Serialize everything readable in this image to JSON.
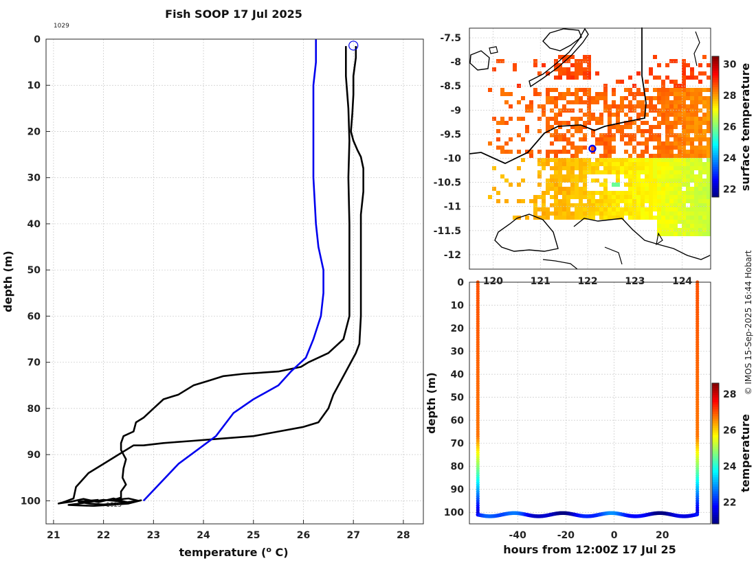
{
  "chart_data": [
    {
      "type": "line",
      "title": "Fish SOOP 17 Jul 2025",
      "xlabel": "temperature (",
      "xlabel_sup": "o",
      "xlabel_end": " C)",
      "ylabel": "depth (m)",
      "xlim": [
        20.85,
        28.4
      ],
      "ylim": [
        0,
        105
      ],
      "xticks": [
        21,
        22,
        23,
        24,
        25,
        26,
        27,
        28
      ],
      "yticks": [
        0,
        10,
        20,
        30,
        40,
        50,
        60,
        70,
        80,
        90,
        100
      ],
      "annotations": [
        {
          "text": "1029",
          "x": 21.0,
          "y": -2.5
        },
        {
          "text": "1025",
          "x": 22.05,
          "y": 101.3
        }
      ],
      "marker": {
        "x": 27.0,
        "y": 1.4
      },
      "series": [
        {
          "name": "profile-1029",
          "color": "#000000",
          "points": [
            [
              27.05,
              1.5
            ],
            [
              27.05,
              4
            ],
            [
              27.0,
              8
            ],
            [
              27.0,
              12
            ],
            [
              26.98,
              16
            ],
            [
              26.95,
              20
            ],
            [
              27.0,
              22
            ],
            [
              27.08,
              24
            ],
            [
              27.15,
              25.5
            ],
            [
              27.2,
              28
            ],
            [
              27.2,
              33
            ],
            [
              27.15,
              38
            ],
            [
              27.15,
              45
            ],
            [
              27.15,
              52
            ],
            [
              27.15,
              60
            ],
            [
              27.12,
              66
            ],
            [
              27.05,
              68
            ],
            [
              26.85,
              72
            ],
            [
              26.6,
              77
            ],
            [
              26.5,
              80
            ],
            [
              26.3,
              83
            ],
            [
              26.0,
              84
            ],
            [
              25.5,
              85
            ],
            [
              25.0,
              86
            ],
            [
              24.4,
              86.5
            ],
            [
              23.8,
              87
            ],
            [
              23.2,
              87.5
            ],
            [
              22.8,
              88
            ],
            [
              22.6,
              88
            ],
            [
              22.3,
              90
            ],
            [
              22.0,
              92
            ],
            [
              21.7,
              94
            ],
            [
              21.45,
              97
            ],
            [
              21.4,
              99.5
            ],
            [
              21.2,
              100.3
            ],
            [
              21.1,
              100.6
            ],
            [
              21.35,
              100.2
            ],
            [
              21.6,
              99.6
            ],
            [
              21.9,
              100.3
            ],
            [
              22.2,
              99.5
            ],
            [
              22.5,
              100.4
            ],
            [
              22.75,
              99.9
            ],
            [
              22.5,
              100.6
            ],
            [
              22.1,
              100.9
            ],
            [
              21.8,
              101.1
            ],
            [
              21.5,
              101.0
            ],
            [
              21.3,
              100.9
            ],
            [
              21.45,
              100.7
            ],
            [
              21.7,
              100.3
            ],
            [
              22.0,
              99.8
            ],
            [
              22.4,
              100.2
            ]
          ]
        },
        {
          "name": "profile-1025",
          "color": "#000000",
          "points": [
            [
              26.85,
              1.5
            ],
            [
              26.85,
              8
            ],
            [
              26.9,
              15
            ],
            [
              26.92,
              22
            ],
            [
              26.9,
              30
            ],
            [
              26.92,
              40
            ],
            [
              26.92,
              50
            ],
            [
              26.92,
              60
            ],
            [
              26.8,
              65
            ],
            [
              26.5,
              68
            ],
            [
              26.1,
              70
            ],
            [
              25.95,
              71
            ],
            [
              25.5,
              72
            ],
            [
              24.8,
              72.5
            ],
            [
              24.4,
              73
            ],
            [
              24.1,
              74
            ],
            [
              23.8,
              75
            ],
            [
              23.5,
              77
            ],
            [
              23.2,
              78
            ],
            [
              23.0,
              80
            ],
            [
              22.8,
              82
            ],
            [
              22.65,
              83
            ],
            [
              22.6,
              85
            ],
            [
              22.4,
              86
            ],
            [
              22.35,
              87.5
            ],
            [
              22.35,
              89
            ],
            [
              22.45,
              91
            ],
            [
              22.4,
              93
            ],
            [
              22.38,
              95
            ],
            [
              22.45,
              96.5
            ],
            [
              22.35,
              98
            ],
            [
              22.35,
              99.3
            ],
            [
              22.2,
              99.8
            ],
            [
              22.5,
              99.5
            ],
            [
              22.7,
              100
            ],
            [
              22.35,
              100.5
            ],
            [
              22.0,
              100.8
            ],
            [
              21.7,
              100.6
            ],
            [
              21.5,
              100.2
            ],
            [
              21.9,
              99.8
            ]
          ]
        },
        {
          "name": "ctd-profile",
          "color": "#0000ee",
          "points": [
            [
              26.25,
              0
            ],
            [
              26.25,
              5
            ],
            [
              26.2,
              10
            ],
            [
              26.2,
              20
            ],
            [
              26.2,
              30
            ],
            [
              26.25,
              40
            ],
            [
              26.3,
              45
            ],
            [
              26.4,
              50
            ],
            [
              26.4,
              55
            ],
            [
              26.35,
              60
            ],
            [
              26.2,
              65
            ],
            [
              26.05,
              69
            ],
            [
              25.75,
              72
            ],
            [
              25.5,
              75
            ],
            [
              25.0,
              78
            ],
            [
              24.6,
              81
            ],
            [
              24.25,
              86
            ],
            [
              23.5,
              92
            ],
            [
              22.8,
              100
            ]
          ]
        }
      ]
    },
    {
      "type": "heatmap",
      "xlim": [
        119.5,
        124.6
      ],
      "ylim": [
        -12.3,
        -7.3
      ],
      "xticks": [
        120,
        121,
        122,
        123,
        124
      ],
      "yticks": [
        -7.5,
        -8,
        -8.5,
        -9,
        -9.5,
        -10,
        -10.5,
        -11,
        -11.5,
        -12
      ],
      "marker": {
        "lon": 122.1,
        "lat": -9.8
      },
      "colorbar": {
        "label": "surface temperature",
        "range": [
          21.5,
          30.5
        ],
        "ticks": [
          22,
          24,
          26,
          28,
          30
        ]
      }
    },
    {
      "type": "scatter",
      "xlabel": "hours from 12:00Z 17 Jul 25",
      "ylabel": "depth (m)",
      "xlim": [
        -60,
        40
      ],
      "ylim": [
        0,
        105
      ],
      "xticks": [
        -40,
        -20,
        0,
        20
      ],
      "yticks": [
        0,
        10,
        20,
        30,
        40,
        50,
        60,
        70,
        80,
        90,
        100
      ],
      "profile_hours": [
        -56.5,
        34.5
      ],
      "tow_depth": 101,
      "colorbar": {
        "label": "temperature",
        "range": [
          20.8,
          28.6
        ],
        "ticks": [
          22,
          24,
          26,
          28
        ]
      }
    }
  ],
  "credit": "© IMOS 15-Sep-2025 16:44 Hobart",
  "colors": {
    "profile": "#000000",
    "ctd": "#0000ee",
    "marker": "#0000ee"
  }
}
